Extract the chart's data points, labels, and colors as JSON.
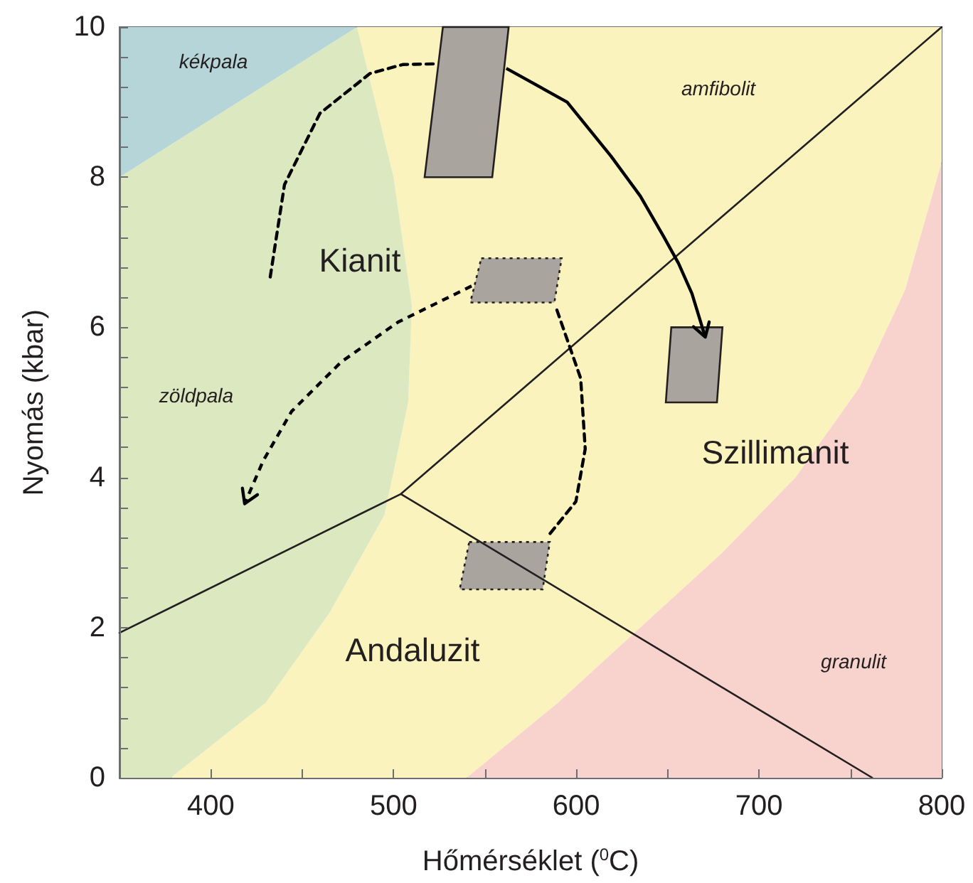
{
  "chart_data": {
    "type": "line",
    "xlabel": "Hőmérséklet ($^{0}$C)",
    "ylabel": "Nyomás (kbar)",
    "xlim": [
      350,
      800
    ],
    "ylim": [
      0,
      10
    ],
    "xticks": [
      400,
      {
        "value": 450,
        "label": null
      },
      500,
      {
        "value": 550,
        "label": null
      },
      600,
      {
        "value": 650,
        "label": null
      },
      700,
      {
        "value": 750,
        "label": null
      },
      800
    ],
    "yticks": [
      0,
      {
        "value": 0.4,
        "label": null
      },
      {
        "value": 0.8,
        "label": null
      },
      {
        "value": 1.2,
        "label": null
      },
      {
        "value": 1.6,
        "label": null
      },
      2,
      {
        "value": 2.4,
        "label": null
      },
      {
        "value": 2.8,
        "label": null
      },
      {
        "value": 3.2,
        "label": null
      },
      {
        "value": 3.6,
        "label": null
      },
      4,
      {
        "value": 4.4,
        "label": null
      },
      {
        "value": 4.8,
        "label": null
      },
      {
        "value": 5.2,
        "label": null
      },
      {
        "value": 5.6,
        "label": null
      },
      6,
      {
        "value": 6.4,
        "label": null
      },
      {
        "value": 6.8,
        "label": null
      },
      {
        "value": 7.2,
        "label": null
      },
      {
        "value": 7.6,
        "label": null
      },
      8,
      {
        "value": 8.4,
        "label": null
      },
      {
        "value": 8.8,
        "label": null
      },
      {
        "value": 9.2,
        "label": null
      },
      {
        "value": 9.6,
        "label": null
      },
      10
    ],
    "grid": false,
    "marker": "none",
    "line_style": "solid",
    "series": [
      {
        "type": "area",
        "color": "#faf3bd",
        "x": [
          378,
          430,
          465,
          495,
          508,
          510,
          500,
          480,
          800,
          800,
          780,
          755,
          720,
          680,
          635,
          590,
          540
        ],
        "values": [
          0,
          1,
          2.2,
          3.5,
          5,
          6.3,
          8,
          10,
          10,
          8.2,
          6.5,
          5.2,
          4,
          3,
          2,
          1,
          0
        ]
      },
      {
        "type": "area",
        "color": "#dce8c0",
        "x": [
          350,
          378,
          430,
          465,
          495,
          508,
          510,
          500,
          480,
          350
        ],
        "values": [
          0,
          0,
          1,
          2.2,
          3.5,
          5,
          6.3,
          8,
          10,
          8
        ]
      },
      {
        "type": "area",
        "color": "#b5d5d8",
        "x": [
          350,
          350,
          480
        ],
        "values": [
          8,
          10,
          10
        ]
      },
      {
        "type": "area",
        "color": "#f8d2cd",
        "x": [
          540,
          590,
          635,
          680,
          720,
          755,
          780,
          800,
          800
        ],
        "values": [
          0,
          1,
          2,
          3,
          4,
          5.2,
          6.5,
          8.2,
          0
        ]
      },
      {
        "color": "#231f20",
        "x": [
          350,
          504,
          800,
          504,
          762
        ],
        "values": [
          1.93,
          3.78,
          10,
          3.78,
          0
        ]
      },
      {
        "color": "#000000",
        "line_style": "dashed",
        "x": [
          432.5,
          440.3,
          459.7,
          487,
          505,
          524.3
        ],
        "values": [
          6.67,
          7.9,
          8.85,
          9.38,
          9.5,
          9.51
        ]
      },
      {
        "color": "#000000",
        "line_style": "dashed",
        "x": [
          589.4,
          602.4,
          604.9,
          599.8,
          584.2
        ],
        "values": [
          6.23,
          5.32,
          4.38,
          3.68,
          3.21
        ]
      },
      {
        "type": "area",
        "color": "#aaa49f",
        "line_style": "solid",
        "x": [
          527,
          563,
          554,
          517
        ],
        "values": [
          10,
          10,
          8,
          8
        ]
      },
      {
        "type": "area",
        "color": "#aaa49f",
        "line_style": "solid",
        "x": [
          652,
          680,
          677,
          649
        ],
        "values": [
          6,
          6,
          5,
          5
        ]
      },
      {
        "type": "area",
        "color": "#aaa49f",
        "line_style": "dotted",
        "x": [
          548,
          592,
          588,
          542
        ],
        "values": [
          6.92,
          6.92,
          6.33,
          6.33
        ]
      },
      {
        "type": "area",
        "color": "#aaa49f",
        "line_style": "dotted",
        "x": [
          541.4,
          585.5,
          581.6,
          536.2
        ],
        "values": [
          3.14,
          3.14,
          2.51,
          2.51
        ]
      }
    ],
    "annotations": [
      "kékpala",
      "amfibolit",
      "Kianit",
      "zöldpala",
      "Szillimanit",
      "Andaluzit",
      "granulit"
    ]
  }
}
